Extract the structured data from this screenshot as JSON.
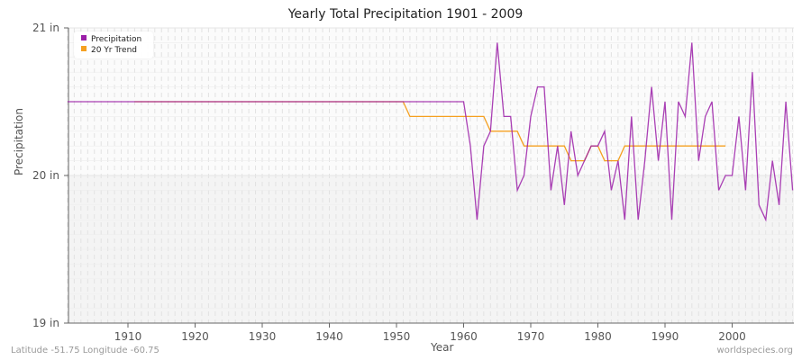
{
  "title": "Yearly Total Precipitation 1901 - 2009",
  "footer": {
    "left": "Latitude -51.75 Longitude -60.75",
    "right": "worldspecies.org"
  },
  "axes": {
    "xlabel": "Year",
    "ylabel": "Precipitation",
    "yticks": [
      "21 in",
      "20 in",
      "19 in"
    ],
    "xticks": [
      "1910",
      "1920",
      "1930",
      "1940",
      "1950",
      "1960",
      "1970",
      "1980",
      "1990",
      "2000"
    ]
  },
  "legend": {
    "items": [
      {
        "label": "Precipitation",
        "color": "#9b1fa8"
      },
      {
        "label": "20 Yr Trend",
        "color": "#f5a020"
      }
    ]
  },
  "chart_data": {
    "type": "line",
    "title": "Yearly Total Precipitation 1901 - 2009",
    "xlabel": "Year",
    "ylabel": "Precipitation",
    "yunit": "in",
    "xlim": [
      1901,
      2009
    ],
    "ylim": [
      19,
      21
    ],
    "yticks": [
      19,
      20,
      21
    ],
    "xticks": [
      1910,
      1920,
      1930,
      1940,
      1950,
      1960,
      1970,
      1980,
      1990,
      2000
    ],
    "grid": true,
    "legend_position": "top-left",
    "series": [
      {
        "name": "Precipitation",
        "color": "#9b1fa8",
        "x": [
          1901,
          1902,
          1903,
          1904,
          1905,
          1906,
          1907,
          1908,
          1909,
          1910,
          1911,
          1912,
          1913,
          1914,
          1915,
          1916,
          1917,
          1918,
          1919,
          1920,
          1921,
          1922,
          1923,
          1924,
          1925,
          1926,
          1927,
          1928,
          1929,
          1930,
          1931,
          1932,
          1933,
          1934,
          1935,
          1936,
          1937,
          1938,
          1939,
          1940,
          1941,
          1942,
          1943,
          1944,
          1945,
          1946,
          1947,
          1948,
          1949,
          1950,
          1951,
          1952,
          1953,
          1954,
          1955,
          1956,
          1957,
          1958,
          1959,
          1960,
          1961,
          1962,
          1963,
          1964,
          1965,
          1966,
          1967,
          1968,
          1969,
          1970,
          1971,
          1972,
          1973,
          1974,
          1975,
          1976,
          1977,
          1978,
          1979,
          1980,
          1981,
          1982,
          1983,
          1984,
          1985,
          1986,
          1987,
          1988,
          1989,
          1990,
          1991,
          1992,
          1993,
          1994,
          1995,
          1996,
          1997,
          1998,
          1999,
          2000,
          2001,
          2002,
          2003,
          2004,
          2005,
          2006,
          2007,
          2008,
          2009
        ],
        "values": [
          20.5,
          20.5,
          20.5,
          20.5,
          20.5,
          20.5,
          20.5,
          20.5,
          20.5,
          20.5,
          20.5,
          20.5,
          20.5,
          20.5,
          20.5,
          20.5,
          20.5,
          20.5,
          20.5,
          20.5,
          20.5,
          20.5,
          20.5,
          20.5,
          20.5,
          20.5,
          20.5,
          20.5,
          20.5,
          20.5,
          20.5,
          20.5,
          20.5,
          20.5,
          20.5,
          20.5,
          20.5,
          20.5,
          20.5,
          20.5,
          20.5,
          20.5,
          20.5,
          20.5,
          20.5,
          20.5,
          20.5,
          20.5,
          20.5,
          20.5,
          20.5,
          20.5,
          20.5,
          20.5,
          20.5,
          20.5,
          20.5,
          20.5,
          20.5,
          20.5,
          20.2,
          19.7,
          20.2,
          20.3,
          20.9,
          20.4,
          20.4,
          19.9,
          20.0,
          20.4,
          20.6,
          20.6,
          19.9,
          20.2,
          19.8,
          20.3,
          20.0,
          20.1,
          20.2,
          20.2,
          20.3,
          19.9,
          20.1,
          19.7,
          20.4,
          19.7,
          20.1,
          20.6,
          20.1,
          20.5,
          19.7,
          20.5,
          20.4,
          20.9,
          20.1,
          20.4,
          20.5,
          19.9,
          20.0,
          20.0,
          20.4,
          19.9,
          20.7,
          19.8,
          19.7,
          20.1,
          19.8,
          20.5,
          19.9
        ]
      },
      {
        "name": "20 Yr Trend",
        "color": "#f5a020",
        "x": [
          1911,
          1912,
          1913,
          1914,
          1915,
          1916,
          1917,
          1918,
          1919,
          1920,
          1921,
          1922,
          1923,
          1924,
          1925,
          1926,
          1927,
          1928,
          1929,
          1930,
          1931,
          1932,
          1933,
          1934,
          1935,
          1936,
          1937,
          1938,
          1939,
          1940,
          1941,
          1942,
          1943,
          1944,
          1945,
          1946,
          1947,
          1948,
          1949,
          1950,
          1951,
          1952,
          1953,
          1954,
          1955,
          1956,
          1957,
          1958,
          1959,
          1960,
          1961,
          1962,
          1963,
          1964,
          1965,
          1966,
          1967,
          1968,
          1969,
          1970,
          1971,
          1972,
          1973,
          1974,
          1975,
          1976,
          1977,
          1978,
          1979,
          1980,
          1981,
          1982,
          1983,
          1984,
          1985,
          1986,
          1987,
          1988,
          1989,
          1990,
          1991,
          1992,
          1993,
          1994,
          1995,
          1996,
          1997,
          1998,
          1999
        ],
        "values": [
          20.5,
          20.5,
          20.5,
          20.5,
          20.5,
          20.5,
          20.5,
          20.5,
          20.5,
          20.5,
          20.5,
          20.5,
          20.5,
          20.5,
          20.5,
          20.5,
          20.5,
          20.5,
          20.5,
          20.5,
          20.5,
          20.5,
          20.5,
          20.5,
          20.5,
          20.5,
          20.5,
          20.5,
          20.5,
          20.5,
          20.5,
          20.5,
          20.5,
          20.5,
          20.5,
          20.5,
          20.5,
          20.5,
          20.5,
          20.5,
          20.5,
          20.4,
          20.4,
          20.4,
          20.4,
          20.4,
          20.4,
          20.4,
          20.4,
          20.4,
          20.4,
          20.4,
          20.4,
          20.3,
          20.3,
          20.3,
          20.3,
          20.3,
          20.2,
          20.2,
          20.2,
          20.2,
          20.2,
          20.2,
          20.2,
          20.1,
          20.1,
          20.1,
          20.2,
          20.2,
          20.1,
          20.1,
          20.1,
          20.2,
          20.2,
          20.2,
          20.2,
          20.2,
          20.2,
          20.2,
          20.2,
          20.2,
          20.2,
          20.2,
          20.2,
          20.2,
          20.2,
          20.2,
          20.2
        ]
      }
    ]
  }
}
